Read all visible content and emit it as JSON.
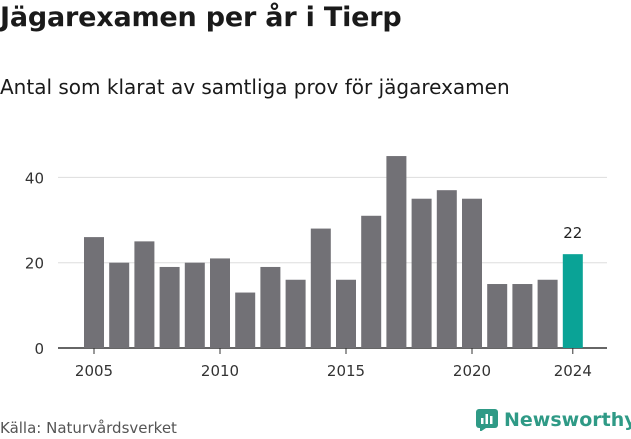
{
  "title": "Jägarexamen per år i Tierp",
  "subtitle": "Antal som klarat av samtliga prov för jägarexamen",
  "source": "Källa: Naturvårdsverket",
  "brand": {
    "name": "Newsworthy",
    "icon": "newsworthy-logo-icon",
    "color": "#2f9a86"
  },
  "colors": {
    "bar": "#727176",
    "highlight": "#0aa396",
    "grid": "#dddddd",
    "axis": "#333333"
  },
  "chart_data": {
    "type": "bar",
    "title": "Jägarexamen per år i Tierp",
    "subtitle": "Antal som klarat av samtliga prov för jägarexamen",
    "categories": [
      2005,
      2006,
      2007,
      2008,
      2009,
      2010,
      2011,
      2012,
      2013,
      2014,
      2015,
      2016,
      2017,
      2018,
      2019,
      2020,
      2021,
      2022,
      2023,
      2024
    ],
    "values": [
      26,
      20,
      25,
      19,
      20,
      21,
      13,
      19,
      16,
      28,
      16,
      31,
      45,
      35,
      37,
      35,
      15,
      15,
      16,
      22
    ],
    "highlight_category": 2024,
    "annotations": [
      {
        "category": 2024,
        "label": "22"
      }
    ],
    "x_ticks": [
      2005,
      2010,
      2015,
      2020,
      2024
    ],
    "y_ticks": [
      0,
      20,
      40
    ],
    "ylim": [
      0,
      49
    ],
    "grid": true,
    "xlabel": "",
    "ylabel": ""
  }
}
